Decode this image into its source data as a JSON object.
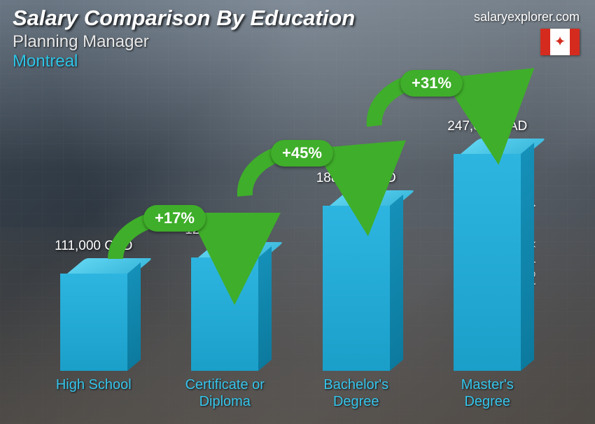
{
  "header": {
    "title": "Salary Comparison By Education",
    "subtitle": "Planning Manager",
    "location": "Montreal"
  },
  "branding": {
    "site": "salaryexplorer.com",
    "country": "Canada"
  },
  "axis": {
    "y_label": "Average Yearly Salary"
  },
  "chart": {
    "type": "bar-3d",
    "max_value": 247000,
    "currency": "CAD",
    "bar_color_top": "#5fd4f0",
    "bar_color_front": "#2db5e0",
    "bar_color_side": "#1590b8",
    "label_color": "#35c6ec",
    "value_color": "#ffffff",
    "arrow_color": "#3fae2a",
    "value_fontsize": 19,
    "label_fontsize": 20,
    "badge_fontsize": 22,
    "categories": [
      {
        "label_line1": "High School",
        "label_line2": "",
        "value": 111000,
        "value_text": "111,000 CAD"
      },
      {
        "label_line1": "Certificate or",
        "label_line2": "Diploma",
        "value": 129000,
        "value_text": "129,000 CAD"
      },
      {
        "label_line1": "Bachelor's",
        "label_line2": "Degree",
        "value": 188000,
        "value_text": "188,000 CAD"
      },
      {
        "label_line1": "Master's",
        "label_line2": "Degree",
        "value": 247000,
        "value_text": "247,000 CAD"
      }
    ],
    "increases": [
      {
        "text": "+17%"
      },
      {
        "text": "+45%"
      },
      {
        "text": "+31%"
      }
    ]
  }
}
